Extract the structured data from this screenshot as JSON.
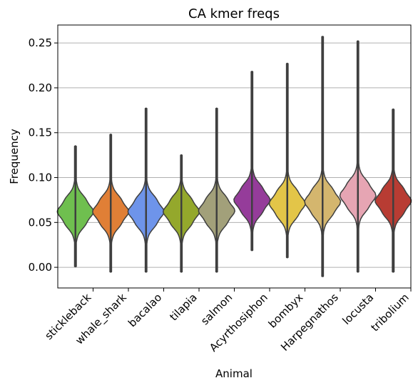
{
  "chart_data": {
    "type": "violin",
    "title": "CA kmer freqs",
    "xlabel": "Animal",
    "ylabel": "Frequency",
    "ylim": [
      -0.023,
      0.27
    ],
    "yticks": [
      0.0,
      0.05,
      0.1,
      0.15,
      0.2,
      0.25
    ],
    "ytick_labels": [
      "0.00",
      "0.05",
      "0.10",
      "0.15",
      "0.20",
      "0.25"
    ],
    "grid": "horizontal",
    "categories": [
      "stickleback",
      "whale_shark",
      "bacalao",
      "tilapia",
      "salmon",
      "Acyrthosiphon",
      "bombyx",
      "Harpegnathos",
      "locusta",
      "tribolium"
    ],
    "series": [
      {
        "category": "stickleback",
        "min": 0.001,
        "max": 0.135,
        "median": 0.062,
        "color": "#6fbf4f"
      },
      {
        "category": "whale_shark",
        "min": -0.005,
        "max": 0.148,
        "median": 0.062,
        "color": "#e07f36"
      },
      {
        "category": "bacalao",
        "min": -0.005,
        "max": 0.177,
        "median": 0.062,
        "color": "#6e94ea"
      },
      {
        "category": "tilapia",
        "min": -0.005,
        "max": 0.125,
        "median": 0.062,
        "color": "#94a82c"
      },
      {
        "category": "salmon",
        "min": -0.005,
        "max": 0.177,
        "median": 0.063,
        "color": "#a2a07a"
      },
      {
        "category": "Acyrthosiphon",
        "min": 0.019,
        "max": 0.218,
        "median": 0.075,
        "color": "#953c9a"
      },
      {
        "category": "bombyx",
        "min": 0.011,
        "max": 0.227,
        "median": 0.071,
        "color": "#e3c548"
      },
      {
        "category": "Harpegnathos",
        "min": -0.01,
        "max": 0.257,
        "median": 0.073,
        "color": "#d4b66e"
      },
      {
        "category": "locusta",
        "min": -0.005,
        "max": 0.252,
        "median": 0.08,
        "color": "#e6a5b3"
      },
      {
        "category": "tribolium",
        "min": -0.005,
        "max": 0.176,
        "median": 0.074,
        "color": "#b83c33"
      }
    ]
  }
}
